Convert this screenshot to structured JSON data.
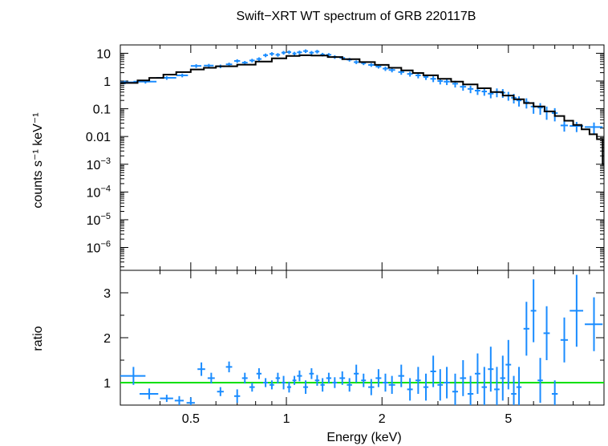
{
  "chart_data": {
    "type": "scatter",
    "title": "Swift−XRT WT spectrum of GRB 220117B",
    "xlabel": "Energy (keV)",
    "xscale": "log",
    "xlim": [
      0.3,
      10
    ],
    "xticks": [
      0.5,
      1,
      2,
      5
    ],
    "xtick_labels": [
      "0.5",
      "1",
      "2",
      "5"
    ],
    "colors": {
      "data": "#1a8cff",
      "model": "#000000",
      "unity": "#00e000"
    },
    "panels": [
      {
        "name": "spectrum",
        "ylabel": "counts s⁻¹ keV⁻¹",
        "yscale": "log",
        "ylim": [
          1.5e-07,
          20
        ],
        "ytick_labels": [
          {
            "v": 10,
            "base": "10",
            "exp": ""
          },
          {
            "v": 1,
            "base": "1",
            "exp": ""
          },
          {
            "v": 0.1,
            "base": "0.1",
            "exp": ""
          },
          {
            "v": 0.01,
            "base": "0.01",
            "exp": ""
          },
          {
            "v": 0.001,
            "base": "10",
            "exp": "−3"
          },
          {
            "v": 0.0001,
            "base": "10",
            "exp": "−4"
          },
          {
            "v": 1e-05,
            "base": "10",
            "exp": "−5"
          },
          {
            "v": 1e-06,
            "base": "10",
            "exp": "−6"
          }
        ],
        "model": {
          "x": [
            0.3,
            0.34,
            0.37,
            0.41,
            0.45,
            0.5,
            0.55,
            0.6,
            0.7,
            0.8,
            0.9,
            1.0,
            1.1,
            1.2,
            1.35,
            1.5,
            1.7,
            1.9,
            2.1,
            2.3,
            2.5,
            2.7,
            3.0,
            3.3,
            3.6,
            4.0,
            4.4,
            4.8,
            5.2,
            5.6,
            6.0,
            6.5,
            7.0,
            7.5,
            8.0,
            8.5,
            9.0,
            9.5,
            9.9
          ],
          "y": [
            0.85,
            1.05,
            1.3,
            1.7,
            2.1,
            2.6,
            3.0,
            3.4,
            3.9,
            5.0,
            6.6,
            8.0,
            8.5,
            8.3,
            7.3,
            6.1,
            4.8,
            3.8,
            3.0,
            2.4,
            1.95,
            1.6,
            1.2,
            0.95,
            0.75,
            0.55,
            0.4,
            0.3,
            0.22,
            0.16,
            0.12,
            0.08,
            0.055,
            0.037,
            0.026,
            0.018,
            0.012,
            0.008,
            0.001
          ]
        },
        "points": {
          "x": [
            0.31,
            0.36,
            0.42,
            0.47,
            0.52,
            0.57,
            0.62,
            0.66,
            0.7,
            0.74,
            0.78,
            0.82,
            0.86,
            0.9,
            0.94,
            0.98,
            1.02,
            1.06,
            1.1,
            1.15,
            1.2,
            1.25,
            1.3,
            1.36,
            1.42,
            1.5,
            1.58,
            1.66,
            1.75,
            1.85,
            1.95,
            2.05,
            2.15,
            2.3,
            2.45,
            2.6,
            2.75,
            2.9,
            3.05,
            3.2,
            3.4,
            3.6,
            3.8,
            4.0,
            4.2,
            4.4,
            4.6,
            4.8,
            5.0,
            5.2,
            5.4,
            5.7,
            6.0,
            6.3,
            6.6,
            7.0,
            7.5,
            8.2,
            9.3
          ],
          "y": [
            0.9,
            0.95,
            1.3,
            1.6,
            3.5,
            3.6,
            3.4,
            4.0,
            5.3,
            4.6,
            5.5,
            6.2,
            8.5,
            9.5,
            8.8,
            10.5,
            11,
            9.8,
            10.8,
            12,
            10.5,
            11.5,
            9.0,
            8.8,
            7.4,
            6.8,
            5.9,
            4.8,
            4.4,
            3.8,
            3.3,
            2.8,
            2.5,
            2.1,
            1.8,
            1.6,
            1.4,
            1.2,
            1.0,
            0.95,
            0.8,
            0.62,
            0.52,
            0.45,
            0.42,
            0.35,
            0.4,
            0.38,
            0.3,
            0.25,
            0.2,
            0.17,
            0.12,
            0.11,
            0.08,
            0.07,
            0.025,
            0.024,
            0.022
          ],
          "xerr": [
            0.02,
            0.03,
            0.03,
            0.02,
            0.02,
            0.02,
            0.02,
            0.015,
            0.015,
            0.015,
            0.015,
            0.015,
            0.015,
            0.015,
            0.015,
            0.015,
            0.015,
            0.015,
            0.02,
            0.02,
            0.02,
            0.02,
            0.02,
            0.025,
            0.025,
            0.03,
            0.03,
            0.03,
            0.03,
            0.04,
            0.04,
            0.04,
            0.05,
            0.05,
            0.05,
            0.05,
            0.05,
            0.06,
            0.06,
            0.07,
            0.07,
            0.08,
            0.08,
            0.08,
            0.08,
            0.09,
            0.09,
            0.09,
            0.1,
            0.1,
            0.1,
            0.12,
            0.12,
            0.12,
            0.15,
            0.15,
            0.2,
            0.4,
            0.6
          ],
          "yerr_frac": [
            0.15,
            0.15,
            0.15,
            0.15,
            0.15,
            0.15,
            0.15,
            0.15,
            0.15,
            0.15,
            0.15,
            0.15,
            0.15,
            0.15,
            0.15,
            0.15,
            0.15,
            0.15,
            0.15,
            0.15,
            0.15,
            0.15,
            0.15,
            0.15,
            0.15,
            0.15,
            0.15,
            0.15,
            0.15,
            0.15,
            0.15,
            0.18,
            0.18,
            0.2,
            0.2,
            0.22,
            0.22,
            0.24,
            0.25,
            0.25,
            0.27,
            0.28,
            0.3,
            0.3,
            0.3,
            0.32,
            0.35,
            0.35,
            0.35,
            0.38,
            0.4,
            0.4,
            0.45,
            0.45,
            0.5,
            0.5,
            0.4,
            0.4,
            0.45
          ]
        }
      },
      {
        "name": "ratio",
        "ylabel": "ratio",
        "yscale": "linear",
        "ylim": [
          0.5,
          3.5
        ],
        "ytick_labels": [
          {
            "v": 1,
            "base": "1",
            "exp": ""
          },
          {
            "v": 2,
            "base": "2",
            "exp": ""
          },
          {
            "v": 3,
            "base": "3",
            "exp": ""
          }
        ],
        "unity_line": 1,
        "points": {
          "x": [
            0.33,
            0.37,
            0.42,
            0.46,
            0.5,
            0.54,
            0.58,
            0.62,
            0.66,
            0.7,
            0.74,
            0.78,
            0.82,
            0.86,
            0.9,
            0.94,
            0.98,
            1.02,
            1.06,
            1.1,
            1.15,
            1.2,
            1.25,
            1.3,
            1.36,
            1.42,
            1.5,
            1.58,
            1.66,
            1.75,
            1.85,
            1.95,
            2.05,
            2.15,
            2.3,
            2.45,
            2.6,
            2.75,
            2.9,
            3.05,
            3.2,
            3.4,
            3.6,
            3.8,
            4.0,
            4.2,
            4.4,
            4.6,
            4.8,
            5.0,
            5.2,
            5.4,
            5.7,
            6.0,
            6.3,
            6.6,
            7.0,
            7.5,
            8.2,
            9.3
          ],
          "y": [
            1.15,
            0.75,
            0.65,
            0.6,
            0.55,
            1.3,
            1.1,
            0.8,
            1.35,
            0.7,
            1.1,
            0.9,
            1.2,
            1.0,
            0.95,
            1.1,
            1.0,
            0.9,
            1.05,
            1.15,
            0.9,
            1.2,
            1.05,
            0.95,
            1.1,
            1.0,
            1.1,
            0.95,
            1.2,
            1.05,
            0.9,
            1.1,
            1.0,
            0.95,
            1.15,
            0.85,
            1.05,
            0.9,
            1.25,
            0.95,
            1.0,
            0.8,
            1.1,
            0.75,
            1.2,
            0.9,
            1.3,
            0.85,
            1.1,
            1.4,
            0.75,
            0.9,
            2.2,
            2.6,
            1.05,
            2.1,
            0.75,
            1.95,
            2.6,
            2.3
          ],
          "xerr": [
            0.03,
            0.025,
            0.02,
            0.015,
            0.015,
            0.015,
            0.015,
            0.015,
            0.015,
            0.015,
            0.015,
            0.015,
            0.015,
            0.015,
            0.015,
            0.015,
            0.015,
            0.015,
            0.015,
            0.02,
            0.02,
            0.02,
            0.02,
            0.02,
            0.025,
            0.025,
            0.03,
            0.03,
            0.03,
            0.03,
            0.04,
            0.04,
            0.04,
            0.05,
            0.05,
            0.05,
            0.05,
            0.05,
            0.06,
            0.06,
            0.07,
            0.07,
            0.08,
            0.08,
            0.08,
            0.08,
            0.09,
            0.09,
            0.09,
            0.1,
            0.1,
            0.1,
            0.12,
            0.12,
            0.12,
            0.15,
            0.15,
            0.2,
            0.4,
            0.6
          ],
          "yerr": [
            0.2,
            0.12,
            0.08,
            0.1,
            0.12,
            0.15,
            0.12,
            0.1,
            0.12,
            0.15,
            0.12,
            0.1,
            0.12,
            0.1,
            0.1,
            0.12,
            0.15,
            0.12,
            0.1,
            0.12,
            0.15,
            0.12,
            0.12,
            0.15,
            0.12,
            0.12,
            0.15,
            0.15,
            0.2,
            0.15,
            0.18,
            0.2,
            0.2,
            0.2,
            0.25,
            0.25,
            0.3,
            0.3,
            0.35,
            0.35,
            0.35,
            0.4,
            0.4,
            0.4,
            0.45,
            0.45,
            0.5,
            0.5,
            0.5,
            0.55,
            0.4,
            0.45,
            0.6,
            0.7,
            0.5,
            0.6,
            0.3,
            0.5,
            0.8,
            0.6
          ]
        }
      }
    ]
  }
}
